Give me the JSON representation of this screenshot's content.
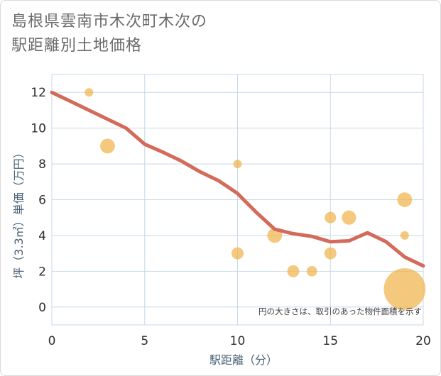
{
  "title_line1": "島根県雲南市木次町木次の",
  "title_line2": "駅距離別土地価格",
  "note": "円の大きさは、取引のあった物件面積を示す",
  "chart_data": {
    "type": "scatter",
    "xlabel": "駅距離（分）",
    "ylabel": "坪（3.3㎡）単価（万円）",
    "xlim": [
      0,
      20
    ],
    "ylim": [
      -1,
      13
    ],
    "xticks": [
      0,
      5,
      10,
      15,
      20
    ],
    "yticks": [
      0,
      2,
      4,
      6,
      8,
      10,
      12
    ],
    "grid": true,
    "points": [
      {
        "x": 2,
        "y": 12,
        "size": 1
      },
      {
        "x": 3,
        "y": 9,
        "size": 3
      },
      {
        "x": 10,
        "y": 8,
        "size": 1
      },
      {
        "x": 10,
        "y": 3,
        "size": 2
      },
      {
        "x": 12,
        "y": 4,
        "size": 3
      },
      {
        "x": 13,
        "y": 2,
        "size": 2
      },
      {
        "x": 14,
        "y": 2,
        "size": 1.5
      },
      {
        "x": 15,
        "y": 5,
        "size": 1.8
      },
      {
        "x": 15,
        "y": 3,
        "size": 2
      },
      {
        "x": 16,
        "y": 5,
        "size": 2.8
      },
      {
        "x": 19,
        "y": 6,
        "size": 3
      },
      {
        "x": 19,
        "y": 4,
        "size": 1
      },
      {
        "x": 19,
        "y": 1,
        "size": 24
      }
    ],
    "trend": {
      "x": [
        0,
        1,
        2,
        3,
        4,
        5,
        6,
        7,
        8,
        9,
        10,
        11,
        12,
        13,
        14,
        15,
        16,
        17,
        18,
        19,
        20
      ],
      "y": [
        12,
        11.5,
        11,
        10.5,
        10,
        9.1,
        8.65,
        8.15,
        7.55,
        7.05,
        6.35,
        5.3,
        4.35,
        4.1,
        3.95,
        3.65,
        3.7,
        4.15,
        3.65,
        2.8,
        2.3
      ]
    },
    "colors": {
      "points": "#f0b44c",
      "trend": "#d46a5a",
      "grid": "#c6d8e6"
    }
  }
}
